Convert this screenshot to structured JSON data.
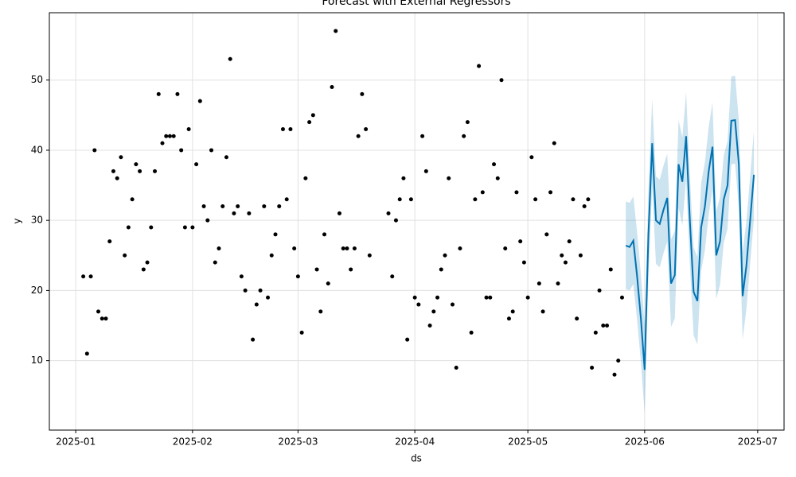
{
  "chart_data": {
    "type": "forecast",
    "title": "Forecast with External Regressors",
    "x_label": "ds",
    "y_label": "y",
    "grid": true,
    "xlim": [
      "2024-12-25",
      "2025-07-08"
    ],
    "ylim": [
      0.1,
      59.6
    ],
    "xticks": [
      {
        "value": "2025-01-01",
        "label": "2025-01"
      },
      {
        "value": "2025-02-01",
        "label": "2025-02"
      },
      {
        "value": "2025-03-01",
        "label": "2025-03"
      },
      {
        "value": "2025-04-01",
        "label": "2025-04"
      },
      {
        "value": "2025-05-01",
        "label": "2025-05"
      },
      {
        "value": "2025-06-01",
        "label": "2025-06"
      },
      {
        "value": "2025-07-01",
        "label": "2025-07"
      }
    ],
    "yticks": [
      10,
      20,
      30,
      40,
      50
    ],
    "series": [
      {
        "type": "scatter",
        "color": "#000000",
        "x": [
          "2025-01-03",
          "2025-01-04",
          "2025-01-05",
          "2025-01-06",
          "2025-01-07",
          "2025-01-08",
          "2025-01-09",
          "2025-01-10",
          "2025-01-11",
          "2025-01-12",
          "2025-01-13",
          "2025-01-14",
          "2025-01-15",
          "2025-01-16",
          "2025-01-17",
          "2025-01-18",
          "2025-01-19",
          "2025-01-20",
          "2025-01-21",
          "2025-01-22",
          "2025-01-23",
          "2025-01-24",
          "2025-01-25",
          "2025-01-26",
          "2025-01-27",
          "2025-01-28",
          "2025-01-29",
          "2025-01-30",
          "2025-01-31",
          "2025-02-01",
          "2025-02-02",
          "2025-02-03",
          "2025-02-04",
          "2025-02-05",
          "2025-02-06",
          "2025-02-07",
          "2025-02-08",
          "2025-02-09",
          "2025-02-10",
          "2025-02-11",
          "2025-02-12",
          "2025-02-13",
          "2025-02-14",
          "2025-02-15",
          "2025-02-16",
          "2025-02-17",
          "2025-02-18",
          "2025-02-19",
          "2025-02-20",
          "2025-02-21",
          "2025-02-22",
          "2025-02-23",
          "2025-02-24",
          "2025-02-25",
          "2025-02-26",
          "2025-02-27",
          "2025-02-28",
          "2025-03-01",
          "2025-03-02",
          "2025-03-03",
          "2025-03-04",
          "2025-03-05",
          "2025-03-06",
          "2025-03-07",
          "2025-03-08",
          "2025-03-09",
          "2025-03-10",
          "2025-03-11",
          "2025-03-12",
          "2025-03-13",
          "2025-03-14",
          "2025-03-15",
          "2025-03-16",
          "2025-03-17",
          "2025-03-18",
          "2025-03-19",
          "2025-03-20",
          "2025-03-25",
          "2025-03-26",
          "2025-03-27",
          "2025-03-28",
          "2025-03-29",
          "2025-03-30",
          "2025-03-31",
          "2025-04-01",
          "2025-04-02",
          "2025-04-03",
          "2025-04-04",
          "2025-04-05",
          "2025-04-06",
          "2025-04-07",
          "2025-04-08",
          "2025-04-09",
          "2025-04-10",
          "2025-04-11",
          "2025-04-12",
          "2025-04-13",
          "2025-04-14",
          "2025-04-15",
          "2025-04-16",
          "2025-04-17",
          "2025-04-18",
          "2025-04-19",
          "2025-04-20",
          "2025-04-21",
          "2025-04-22",
          "2025-04-23",
          "2025-04-24",
          "2025-04-25",
          "2025-04-26",
          "2025-04-27",
          "2025-04-28",
          "2025-04-29",
          "2025-04-30",
          "2025-05-01",
          "2025-05-02",
          "2025-05-03",
          "2025-05-04",
          "2025-05-05",
          "2025-05-06",
          "2025-05-07",
          "2025-05-08",
          "2025-05-09",
          "2025-05-10",
          "2025-05-11",
          "2025-05-12",
          "2025-05-13",
          "2025-05-14",
          "2025-05-15",
          "2025-05-16",
          "2025-05-17",
          "2025-05-18",
          "2025-05-19",
          "2025-05-20",
          "2025-05-21",
          "2025-05-22",
          "2025-05-23",
          "2025-05-24",
          "2025-05-25",
          "2025-05-26"
        ],
        "values": [
          22,
          11,
          22,
          40,
          17,
          16,
          16,
          27,
          37,
          36,
          39,
          25,
          29,
          33,
          38,
          37,
          23,
          24,
          29,
          37,
          48,
          41,
          42,
          42,
          42,
          48,
          40,
          29,
          43,
          29,
          38,
          47,
          32,
          30,
          40,
          24,
          26,
          32,
          39,
          53,
          31,
          32,
          22,
          20,
          31,
          13,
          18,
          20,
          32,
          19,
          25,
          28,
          32,
          43,
          33,
          43,
          26,
          22,
          14,
          36,
          44,
          45,
          23,
          17,
          28,
          21,
          49,
          57,
          31,
          26,
          26,
          23,
          26,
          42,
          48,
          43,
          25,
          31,
          22,
          30,
          33,
          36,
          13,
          33,
          19,
          18,
          42,
          37,
          15,
          17,
          19,
          23,
          25,
          36,
          18,
          9,
          26,
          42,
          44,
          14,
          33,
          52,
          34,
          19,
          19,
          38,
          36,
          50,
          26,
          16,
          17,
          34,
          27,
          24,
          19,
          39,
          33,
          21,
          17,
          28,
          34,
          41,
          21,
          25,
          24,
          27,
          33,
          16,
          25,
          32,
          33,
          9,
          14,
          20,
          15,
          15,
          23,
          8,
          10,
          19
        ]
      },
      {
        "type": "line",
        "color": "#0072B2",
        "band_color": "#0072B2",
        "x": [
          "2025-05-27",
          "2025-05-28",
          "2025-05-29",
          "2025-05-30",
          "2025-05-31",
          "2025-06-01",
          "2025-06-02",
          "2025-06-03",
          "2025-06-04",
          "2025-06-05",
          "2025-06-06",
          "2025-06-07",
          "2025-06-08",
          "2025-06-09",
          "2025-06-10",
          "2025-06-11",
          "2025-06-12",
          "2025-06-13",
          "2025-06-14",
          "2025-06-15",
          "2025-06-16",
          "2025-06-17",
          "2025-06-18",
          "2025-06-19",
          "2025-06-20",
          "2025-06-21",
          "2025-06-22",
          "2025-06-23",
          "2025-06-24",
          "2025-06-25",
          "2025-06-26",
          "2025-06-27",
          "2025-06-28",
          "2025-06-29",
          "2025-06-30"
        ],
        "values": [
          26.4,
          26.2,
          27.1,
          22,
          16,
          8.7,
          28,
          41,
          30,
          29.5,
          31.5,
          33.2,
          21,
          22.2,
          38,
          35.5,
          42,
          30,
          19.8,
          18.5,
          29,
          32,
          37,
          40.5,
          25,
          27,
          33,
          35,
          44.2,
          44.3,
          38,
          19.2,
          23.5,
          30,
          36.5
        ],
        "lower": [
          20.2,
          20.0,
          20.9,
          15.8,
          9.8,
          2.5,
          21.8,
          34.8,
          23.8,
          23.3,
          25.3,
          27.0,
          14.8,
          16.0,
          31.8,
          29.3,
          35.8,
          23.8,
          13.6,
          12.3,
          22.8,
          25.8,
          30.8,
          34.3,
          18.8,
          20.8,
          26.8,
          28.8,
          38.0,
          38.1,
          31.8,
          13.0,
          17.3,
          23.8,
          30.3
        ],
        "upper": [
          32.7,
          32.5,
          33.4,
          28.3,
          22.3,
          15.0,
          34.3,
          47.3,
          36.3,
          35.8,
          37.8,
          39.5,
          27.3,
          28.5,
          44.3,
          41.8,
          48.3,
          36.3,
          26.1,
          24.8,
          35.3,
          38.3,
          43.3,
          46.8,
          31.3,
          33.3,
          39.3,
          41.3,
          50.5,
          50.6,
          44.3,
          25.5,
          29.8,
          36.3,
          42.8
        ]
      }
    ]
  }
}
